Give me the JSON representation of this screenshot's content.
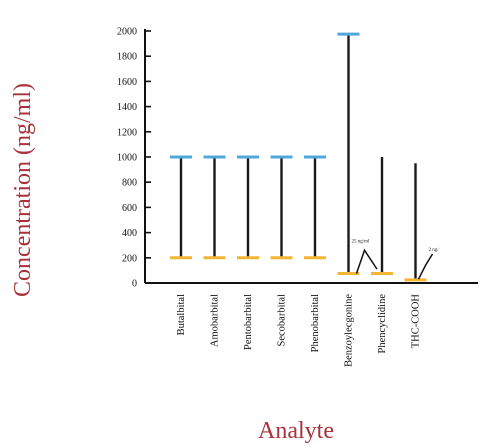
{
  "chart_data": {
    "type": "range",
    "title": "",
    "xlabel": "Analyte",
    "ylabel": "Concentration (ng/ml)",
    "ylim": [
      0,
      2000
    ],
    "yticks": [
      0,
      200,
      400,
      600,
      800,
      1000,
      1200,
      1400,
      1600,
      1800,
      2000
    ],
    "grid": false,
    "categories": [
      "Butalbital",
      "Amobarbital",
      "Pentobarbital",
      "Secobarbital",
      "Phenobarbital",
      "Benzoylecgonine",
      "Phencyclidine",
      "THC-COOH"
    ],
    "lower": [
      200,
      200,
      200,
      200,
      200,
      75,
      75,
      25
    ],
    "upper": [
      1000,
      1000,
      1000,
      1000,
      1000,
      1975,
      1000,
      950
    ],
    "upper_marked": [
      true,
      true,
      true,
      true,
      true,
      true,
      false,
      false
    ],
    "annotations": [
      {
        "text": "25 ng/ml",
        "category": "Phencyclidine",
        "value": 25
      },
      {
        "text": "2 ng/",
        "category": "THC-COOH",
        "value": 2
      }
    ],
    "colors": {
      "axis_title": "#a8323c",
      "upper_marker": "#4fa8dc",
      "lower_marker": "#f2b535",
      "range_line": "#1a1a1a"
    }
  }
}
